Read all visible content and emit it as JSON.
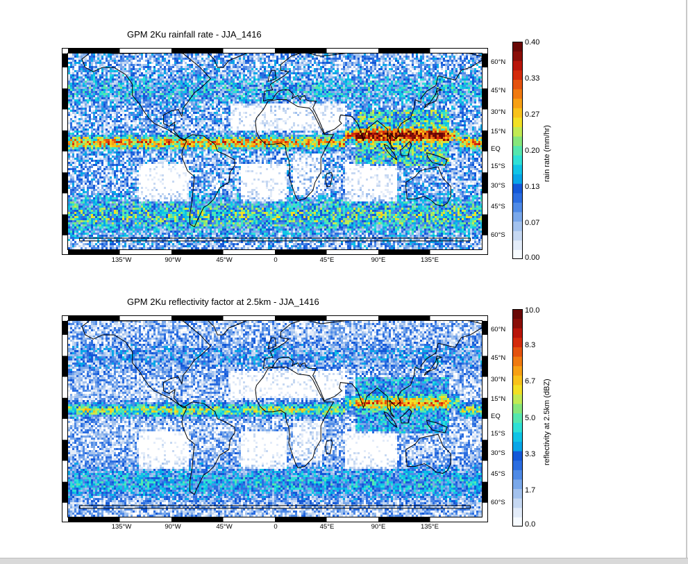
{
  "panels": [
    {
      "title": "GPM 2Ku rainfall rate - JJA_1416",
      "lon_ticks": [
        "135°W",
        "90°W",
        "45°W",
        "0",
        "45°E",
        "90°E",
        "135°E"
      ],
      "lat_ticks": [
        "60°N",
        "45°N",
        "30°N",
        "15°N",
        "EQ",
        "15°S",
        "30°S",
        "45°S",
        "60°S"
      ],
      "colorbar": {
        "label": "rain rate (mm/hr)",
        "tick_labels": [
          "0.40",
          "0.33",
          "0.27",
          "0.20",
          "0.13",
          "0.07",
          "0.00"
        ],
        "min": 0.0,
        "max": 0.4
      }
    },
    {
      "title": "GPM 2Ku reflectivity factor at 2.5km - JJA_1416",
      "lon_ticks": [
        "135°W",
        "90°W",
        "45°W",
        "0",
        "45°E",
        "90°E",
        "135°E"
      ],
      "lat_ticks": [
        "60°N",
        "45°N",
        "30°N",
        "15°N",
        "EQ",
        "15°S",
        "30°S",
        "45°S",
        "60°S"
      ],
      "colorbar": {
        "label": "reflectivity at 2.5km (dBZ)",
        "tick_labels": [
          "10.0",
          "8.3",
          "6.7",
          "5.0",
          "3.3",
          "1.7",
          "0.0"
        ],
        "min": 0.0,
        "max": 10.0
      }
    }
  ],
  "colormap": [
    "#f7fbff",
    "#e3ecf9",
    "#c6d8f2",
    "#a3c2ee",
    "#7aa8ea",
    "#4f8ae6",
    "#2b6de0",
    "#1358d8",
    "#08a6e8",
    "#10c4e6",
    "#2fe0d6",
    "#55e6ae",
    "#86e67b",
    "#c2ea52",
    "#f2e024",
    "#f8c21a",
    "#f7a014",
    "#f07a10",
    "#e4520e",
    "#d42a0b",
    "#b8150a",
    "#8a0e08",
    "#6a0806"
  ]
}
